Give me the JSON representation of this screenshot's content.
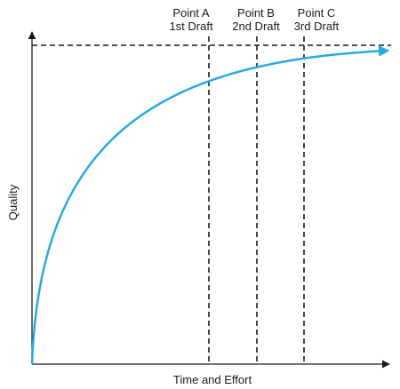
{
  "diagram": {
    "x_axis_label": "Time and Effort",
    "y_axis_label": "Quality",
    "markers": [
      {
        "line1": "Point A",
        "line2": "1st Draft"
      },
      {
        "line1": "Point B",
        "line2": "2nd Draft"
      },
      {
        "line1": "Point C",
        "line2": "3rd Draft"
      }
    ],
    "colors": {
      "curve": "#27aae1",
      "axes": "#1a1a1a",
      "guides": "#1a1a1a"
    },
    "icons": {
      "curve_end": "arrowhead",
      "axis_ends": "arrowhead"
    }
  }
}
